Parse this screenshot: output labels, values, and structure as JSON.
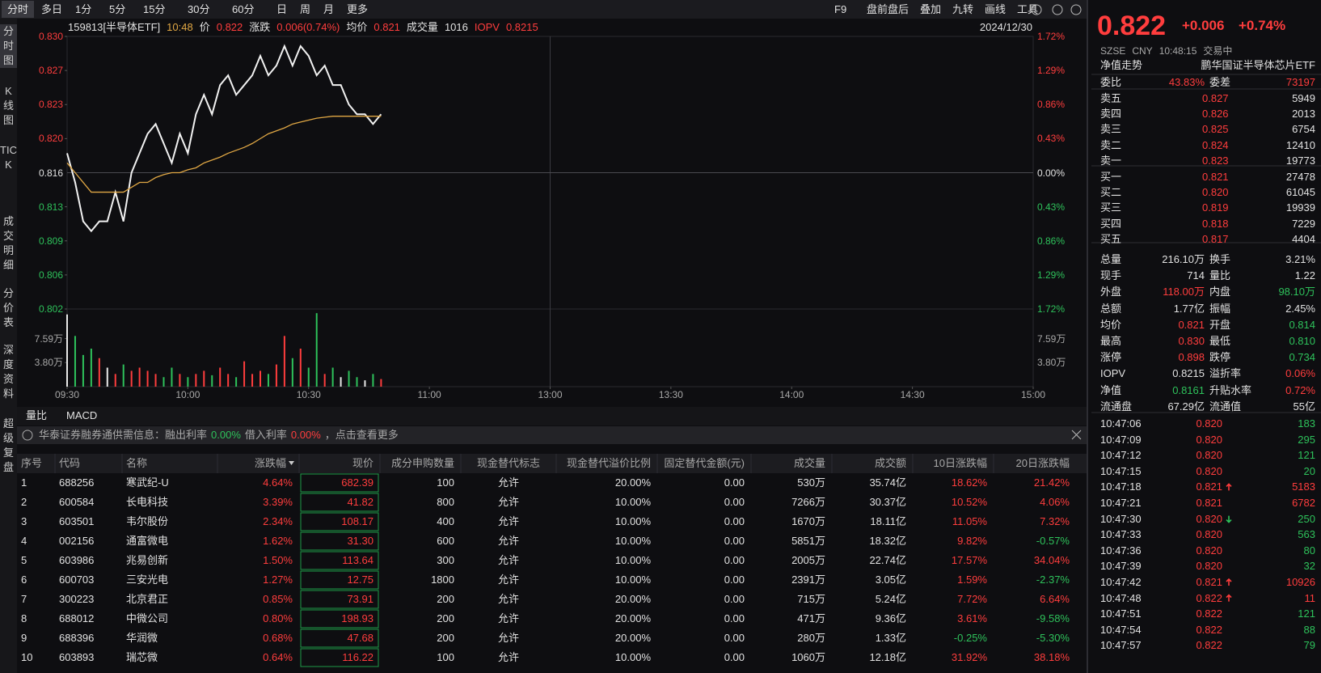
{
  "toolbar": {
    "tabs": [
      "分时",
      "多日",
      "1分",
      "5分",
      "15分",
      "30分",
      "60分",
      "日",
      "周",
      "月",
      "更多"
    ],
    "tools": [
      "F9",
      "盘前盘后",
      "叠加",
      "九转",
      "画线",
      "工具"
    ]
  },
  "side_tabs": [
    "分时图",
    "K线图",
    "TICK",
    "成交明细",
    "分价表",
    "深度资料",
    "超级复盘"
  ],
  "info": {
    "code": "159813[半导体ETF]",
    "time": "10:48",
    "price_label": "价",
    "price": "0.822",
    "change_label": "涨跌",
    "change": "0.006(0.74%)",
    "avg_label": "均价",
    "avg": "0.821",
    "vol_label": "成交量",
    "vol": "1016",
    "iopv_label": "IOPV",
    "iopv": "0.8215",
    "date": "2024/12/30"
  },
  "chart_data": {
    "type": "line",
    "ylim": [
      0.802,
      0.83
    ],
    "yticks": [
      {
        "value": 0.83,
        "label": "0.830"
      },
      {
        "value": 0.8265,
        "label": "0.827"
      },
      {
        "value": 0.823,
        "label": "0.823"
      },
      {
        "value": 0.8195,
        "label": "0.820"
      },
      {
        "value": 0.816,
        "label": "0.816"
      },
      {
        "value": 0.8125,
        "label": "0.813"
      },
      {
        "value": 0.809,
        "label": "0.809"
      },
      {
        "value": 0.8055,
        "label": "0.806"
      },
      {
        "value": 0.802,
        "label": "0.802"
      }
    ],
    "pct_ticks": [
      "1.72%",
      "1.29%",
      "0.86%",
      "0.43%",
      "0.00%",
      "0.43%",
      "0.86%",
      "1.29%",
      "1.72%"
    ],
    "vol_lim": [
      0,
      12
    ],
    "vol_ticks": [
      {
        "value": 7.59,
        "label": "7.59万"
      },
      {
        "value": 3.8,
        "label": "3.80万"
      }
    ],
    "xticks": [
      "09:30",
      "10:00",
      "10:30",
      "11:00",
      "13:00",
      "13:30",
      "14:00",
      "14:30",
      "15:00"
    ],
    "series": [
      {
        "name": "价格",
        "color": "#f2f2f2",
        "values": [
          0.818,
          0.815,
          0.811,
          0.81,
          0.811,
          0.811,
          0.814,
          0.811,
          0.816,
          0.818,
          0.82,
          0.821,
          0.819,
          0.817,
          0.82,
          0.818,
          0.822,
          0.824,
          0.822,
          0.825,
          0.826,
          0.824,
          0.825,
          0.826,
          0.828,
          0.826,
          0.827,
          0.829,
          0.827,
          0.829,
          0.828,
          0.826,
          0.827,
          0.825,
          0.825,
          0.823,
          0.822,
          0.822,
          0.821,
          0.822
        ]
      },
      {
        "name": "均价",
        "color": "#e0a744",
        "values": [
          0.817,
          0.816,
          0.815,
          0.814,
          0.814,
          0.814,
          0.814,
          0.814,
          0.8145,
          0.815,
          0.815,
          0.8155,
          0.8158,
          0.816,
          0.816,
          0.8163,
          0.8165,
          0.817,
          0.8173,
          0.8176,
          0.818,
          0.8183,
          0.8186,
          0.819,
          0.8195,
          0.82,
          0.8203,
          0.8206,
          0.821,
          0.8212,
          0.8214,
          0.8216,
          0.8217,
          0.8218,
          0.8218,
          0.8218,
          0.8218,
          0.8218,
          0.8218,
          0.8218
        ]
      }
    ],
    "volume": [
      11.4,
      8.0,
      5.0,
      6.0,
      4.5,
      3.0,
      2.0,
      3.5,
      2.5,
      3.0,
      2.5,
      2.0,
      1.5,
      3.0,
      2.0,
      1.5,
      2.0,
      2.5,
      1.8,
      3.0,
      2.0,
      1.5,
      4.0,
      2.0,
      2.5,
      2.0,
      3.5,
      8.0,
      4.5,
      6.0,
      3.0,
      11.6,
      2.0,
      3.0,
      1.5,
      2.5,
      1.5,
      1.0,
      2.0,
      1.2
    ]
  },
  "indicator_tabs": [
    "量比",
    "MACD"
  ],
  "notice": {
    "prefix": "华泰证券融券通供需信息：融出利率",
    "rate1": "0.00%",
    "mid": "借入利率",
    "rate2": "0.00%",
    "suffix": "，点击查看更多"
  },
  "table": {
    "headers": [
      "序号",
      "代码",
      "名称",
      "涨跌幅",
      "现价",
      "成分申购数量",
      "现金替代标志",
      "现金替代溢价比例",
      "固定替代金额(元)",
      "成交量",
      "成交额",
      "10日涨跌幅",
      "20日涨跌幅"
    ],
    "rows": [
      [
        "1",
        "688256",
        "寒武纪-U",
        "4.64%",
        "682.39",
        "100",
        "允许",
        "20.00%",
        "0.00",
        "530万",
        "35.74亿",
        "18.62%",
        "21.42%"
      ],
      [
        "2",
        "600584",
        "长电科技",
        "3.39%",
        "41.82",
        "800",
        "允许",
        "10.00%",
        "0.00",
        "7266万",
        "30.37亿",
        "10.52%",
        "4.06%"
      ],
      [
        "3",
        "603501",
        "韦尔股份",
        "2.34%",
        "108.17",
        "400",
        "允许",
        "10.00%",
        "0.00",
        "1670万",
        "18.11亿",
        "11.05%",
        "7.32%"
      ],
      [
        "4",
        "002156",
        "通富微电",
        "1.62%",
        "31.30",
        "600",
        "允许",
        "10.00%",
        "0.00",
        "5851万",
        "18.32亿",
        "9.82%",
        "-0.57%"
      ],
      [
        "5",
        "603986",
        "兆易创新",
        "1.50%",
        "113.64",
        "300",
        "允许",
        "10.00%",
        "0.00",
        "2005万",
        "22.74亿",
        "17.57%",
        "34.04%"
      ],
      [
        "6",
        "600703",
        "三安光电",
        "1.27%",
        "12.75",
        "1800",
        "允许",
        "10.00%",
        "0.00",
        "2391万",
        "3.05亿",
        "1.59%",
        "-2.37%"
      ],
      [
        "7",
        "300223",
        "北京君正",
        "0.85%",
        "73.91",
        "200",
        "允许",
        "20.00%",
        "0.00",
        "715万",
        "5.24亿",
        "7.72%",
        "6.64%"
      ],
      [
        "8",
        "688012",
        "中微公司",
        "0.80%",
        "198.93",
        "200",
        "允许",
        "20.00%",
        "0.00",
        "471万",
        "9.36亿",
        "3.61%",
        "-9.58%"
      ],
      [
        "9",
        "688396",
        "华润微",
        "0.68%",
        "47.68",
        "200",
        "允许",
        "20.00%",
        "0.00",
        "280万",
        "1.33亿",
        "-0.25%",
        "-5.30%"
      ],
      [
        "10",
        "603893",
        "瑞芯微",
        "0.64%",
        "116.22",
        "100",
        "允许",
        "10.00%",
        "0.00",
        "1060万",
        "12.18亿",
        "31.92%",
        "38.18%"
      ]
    ]
  },
  "quote": {
    "price": "0.822",
    "change": "+0.006",
    "pct": "+0.74%",
    "exchange": "SZSE",
    "currency": "CNY",
    "time": "10:48:15",
    "status": "交易中",
    "nav_link": "净值走势",
    "fund_name": "鹏华国证半导体芯片ETF"
  },
  "book": {
    "ratio_label": "委比",
    "ratio": "43.83%",
    "diff_label": "委差",
    "diff": "73197",
    "asks": [
      [
        "卖五",
        "0.827",
        "5949"
      ],
      [
        "卖四",
        "0.826",
        "2013"
      ],
      [
        "卖三",
        "0.825",
        "6754"
      ],
      [
        "卖二",
        "0.824",
        "12410"
      ],
      [
        "卖一",
        "0.823",
        "19773"
      ]
    ],
    "bids": [
      [
        "买一",
        "0.821",
        "27478"
      ],
      [
        "买二",
        "0.820",
        "61045"
      ],
      [
        "买三",
        "0.819",
        "19939"
      ],
      [
        "买四",
        "0.818",
        "7229"
      ],
      [
        "买五",
        "0.817",
        "4404"
      ]
    ]
  },
  "stats": [
    [
      "总量",
      "216.10万",
      "换手",
      "3.21%"
    ],
    [
      "现手",
      "714",
      "量比",
      "1.22"
    ],
    [
      "外盘",
      "118.00万",
      "内盘",
      "98.10万"
    ],
    [
      "总额",
      "1.77亿",
      "振幅",
      "2.45%"
    ],
    [
      "均价",
      "0.821",
      "开盘",
      "0.814"
    ],
    [
      "最高",
      "0.830",
      "最低",
      "0.810"
    ],
    [
      "涨停",
      "0.898",
      "跌停",
      "0.734"
    ],
    [
      "IOPV",
      "0.8215",
      "溢折率",
      "0.06%"
    ],
    [
      "净值",
      "0.8161",
      "升贴水率",
      "0.72%"
    ],
    [
      "流通盘",
      "67.29亿",
      "流通值",
      "55亿"
    ]
  ],
  "trades": [
    {
      "time": "10:47:06",
      "price": 0.82,
      "vol": "183",
      "color": "green"
    },
    {
      "time": "10:47:09",
      "price": 0.82,
      "vol": "295",
      "color": "green"
    },
    {
      "time": "10:47:12",
      "price": 0.82,
      "vol": "121",
      "color": "green"
    },
    {
      "time": "10:47:15",
      "price": 0.82,
      "vol": "20",
      "color": "green"
    },
    {
      "time": "10:47:18",
      "price": 0.821,
      "vol": "5183",
      "color": "red"
    },
    {
      "time": "10:47:21",
      "price": 0.821,
      "vol": "6782",
      "color": "red"
    },
    {
      "time": "10:47:30",
      "price": 0.82,
      "vol": "250",
      "color": "green"
    },
    {
      "time": "10:47:33",
      "price": 0.82,
      "vol": "563",
      "color": "green"
    },
    {
      "time": "10:47:36",
      "price": 0.82,
      "vol": "80",
      "color": "green"
    },
    {
      "time": "10:47:39",
      "price": 0.82,
      "vol": "32",
      "color": "green"
    },
    {
      "time": "10:47:42",
      "price": 0.821,
      "vol": "10926",
      "color": "red"
    },
    {
      "time": "10:47:48",
      "price": 0.822,
      "vol": "11",
      "color": "red"
    },
    {
      "time": "10:47:51",
      "price": 0.822,
      "vol": "121",
      "color": "green"
    },
    {
      "time": "10:47:54",
      "price": 0.822,
      "vol": "88",
      "color": "green"
    },
    {
      "time": "10:47:57",
      "price": 0.822,
      "vol": "79",
      "color": "green"
    }
  ]
}
